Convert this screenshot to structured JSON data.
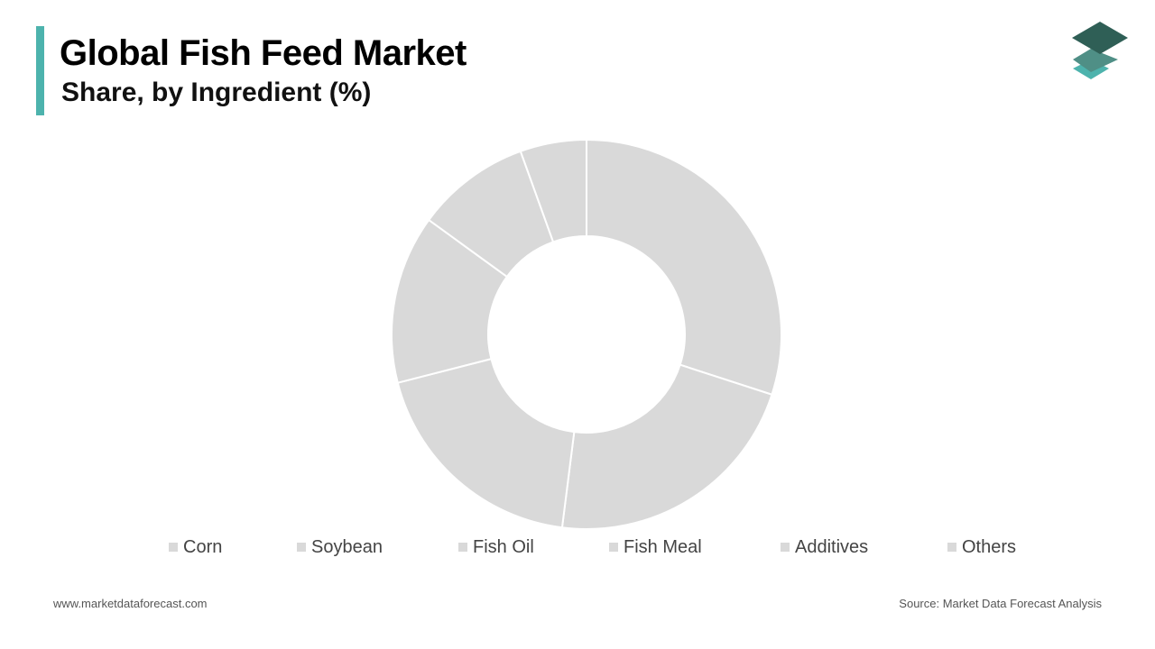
{
  "header": {
    "title": "Global Fish Feed Market",
    "subtitle": "Share, by Ingredient (%)"
  },
  "colors": {
    "accent": "#4db3ad",
    "slice": "#d9d9d9",
    "slice_border": "#ffffff",
    "logo_dark": "#2f5f56",
    "logo_mid": "#4f8f86",
    "logo_light": "#4db3ad"
  },
  "chart_data": {
    "type": "pie",
    "variant": "donut",
    "categories": [
      "Corn",
      "Soybean",
      "Fish Oil",
      "Fish Meal",
      "Additives",
      "Others"
    ],
    "values": [
      30,
      22,
      19,
      14,
      9.5,
      5.5
    ],
    "unit": "%",
    "legend_position": "bottom",
    "data_labels_shown": false
  },
  "legend": {
    "items": [
      "Corn",
      "Soybean",
      "Fish Oil",
      "Fish Meal",
      "Additives",
      "Others"
    ]
  },
  "footer": {
    "website": "www.marketdataforecast.com",
    "source": "Source: Market Data Forecast Analysis"
  }
}
